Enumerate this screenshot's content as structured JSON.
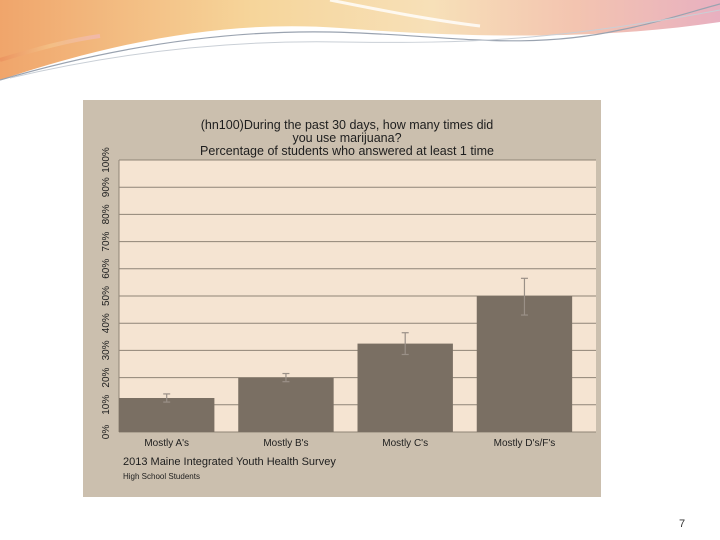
{
  "page_number": "7",
  "chart_data": {
    "type": "bar",
    "title_lines": [
      "(hn100)During the past 30 days, how many times did",
      "you use marijuana?",
      "Percentage of students who answered at least 1 time"
    ],
    "categories": [
      "Mostly A's",
      "Mostly B's",
      "Mostly C's",
      "Mostly D's/F's"
    ],
    "values": [
      12.5,
      20,
      32.5,
      50
    ],
    "error_low": [
      11,
      18.5,
      28.5,
      43
    ],
    "error_high": [
      14,
      21.5,
      36.5,
      56.5
    ],
    "y_ticks": [
      "0%",
      "10%",
      "20%",
      "30%",
      "40%",
      "50%",
      "60%",
      "70%",
      "80%",
      "90%",
      "100%"
    ],
    "ylim": [
      0,
      100
    ],
    "grid": true,
    "source": "2013 Maine Integrated Youth Health Survey",
    "subnote": "High School Students",
    "colors": {
      "panel": "#cbbfae",
      "plot_bg": "#f5e4d2",
      "bar": "#7a6f63",
      "gridline": "#8f8477",
      "error_bar": "#9a9087"
    }
  }
}
